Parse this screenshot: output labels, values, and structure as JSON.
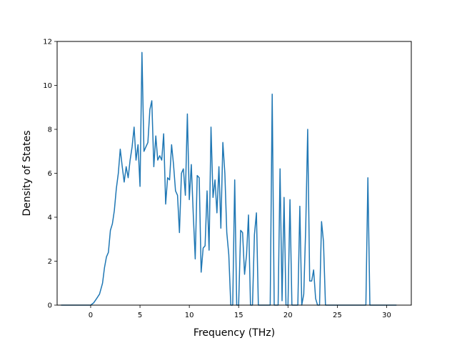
{
  "chart_data": {
    "type": "line",
    "title": "",
    "xlabel": "Frequency (THz)",
    "ylabel": "Density of States",
    "xlim": [
      -3.4,
      32.5
    ],
    "ylim": [
      0,
      12
    ],
    "xticks": [
      0,
      5,
      10,
      15,
      20,
      25,
      30
    ],
    "yticks": [
      0,
      2,
      4,
      6,
      8,
      10,
      12
    ],
    "grid": false,
    "line_color": "#1f77b4",
    "series": [
      {
        "x": [
          -3.0,
          -2.0,
          -1.0,
          0.0,
          0.3,
          0.6,
          0.9,
          1.2,
          1.4,
          1.6,
          1.8,
          2.0,
          2.2,
          2.4,
          2.6,
          2.8,
          3.0,
          3.2,
          3.4,
          3.6,
          3.8,
          4.0,
          4.2,
          4.4,
          4.6,
          4.8,
          5.0,
          5.2,
          5.4,
          5.6,
          5.8,
          6.0,
          6.2,
          6.4,
          6.6,
          6.8,
          7.0,
          7.2,
          7.4,
          7.6,
          7.8,
          8.0,
          8.2,
          8.4,
          8.6,
          8.8,
          9.0,
          9.2,
          9.4,
          9.6,
          9.8,
          10.0,
          10.2,
          10.4,
          10.6,
          10.8,
          11.0,
          11.2,
          11.4,
          11.6,
          11.8,
          12.0,
          12.2,
          12.4,
          12.6,
          12.8,
          13.0,
          13.2,
          13.4,
          13.6,
          13.8,
          14.0,
          14.2,
          14.4,
          14.6,
          14.8,
          15.0,
          15.2,
          15.4,
          15.6,
          15.8,
          16.0,
          16.2,
          16.4,
          16.6,
          16.8,
          17.0,
          17.2,
          17.4,
          17.6,
          17.8,
          18.0,
          18.2,
          18.4,
          18.6,
          18.8,
          19.0,
          19.2,
          19.4,
          19.6,
          19.8,
          20.0,
          20.2,
          20.4,
          20.6,
          20.8,
          21.0,
          21.2,
          21.4,
          21.6,
          21.8,
          22.0,
          22.2,
          22.4,
          22.6,
          22.8,
          23.0,
          23.2,
          23.4,
          23.6,
          23.8,
          24.0,
          24.2,
          25.0,
          26.0,
          27.0,
          27.6,
          27.9,
          28.1,
          28.3,
          28.6,
          29.0,
          30.0,
          31.0
        ],
        "values": [
          0.0,
          0.0,
          0.0,
          0.0,
          0.1,
          0.3,
          0.5,
          1.0,
          1.7,
          2.2,
          2.4,
          3.4,
          3.7,
          4.3,
          5.3,
          6.0,
          7.1,
          6.3,
          5.6,
          6.3,
          5.8,
          6.6,
          7.2,
          8.1,
          6.6,
          7.3,
          5.4,
          11.5,
          7.0,
          7.2,
          7.4,
          8.9,
          9.3,
          6.3,
          7.7,
          6.6,
          6.8,
          6.6,
          7.8,
          4.6,
          5.8,
          5.7,
          7.3,
          6.4,
          5.2,
          5.0,
          3.3,
          6.0,
          6.2,
          5.0,
          8.7,
          4.8,
          6.4,
          4.1,
          2.1,
          5.9,
          5.8,
          1.5,
          2.6,
          2.7,
          5.2,
          2.5,
          8.1,
          4.9,
          5.7,
          4.2,
          6.3,
          3.5,
          7.4,
          6.0,
          3.3,
          2.3,
          0.0,
          0.0,
          5.7,
          0.0,
          0.0,
          3.4,
          3.3,
          1.4,
          2.3,
          4.1,
          0.0,
          0.0,
          3.2,
          4.2,
          0.0,
          0.0,
          0.0,
          0.0,
          0.0,
          0.0,
          0.0,
          9.6,
          0.0,
          0.0,
          0.0,
          6.2,
          0.2,
          4.9,
          0.0,
          0.0,
          4.8,
          0.0,
          0.0,
          0.0,
          0.0,
          4.5,
          0.0,
          0.5,
          3.6,
          8.0,
          1.1,
          1.1,
          1.6,
          0.3,
          0.0,
          0.0,
          3.8,
          2.9,
          0.0,
          0.0,
          0.0,
          0.0,
          0.0,
          0.0,
          0.0,
          0.0,
          5.8,
          0.0,
          0.0,
          0.0,
          0.0,
          0.0
        ]
      }
    ]
  }
}
